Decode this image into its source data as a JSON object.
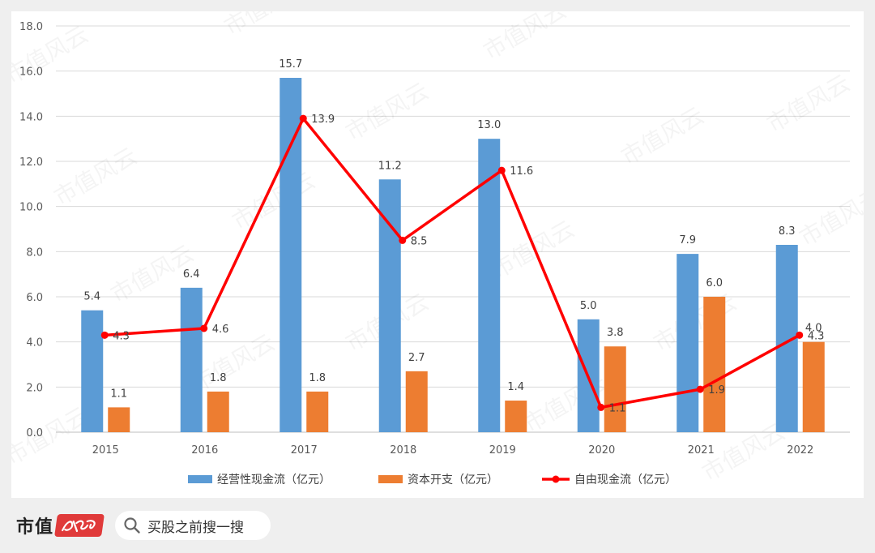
{
  "chart_data": {
    "type": "bar",
    "categories": [
      "2015",
      "2016",
      "2017",
      "2018",
      "2019",
      "2020",
      "2021",
      "2022"
    ],
    "ylim": [
      0,
      18
    ],
    "yticks": [
      "0.0",
      "2.0",
      "4.0",
      "6.0",
      "8.0",
      "10.0",
      "12.0",
      "14.0",
      "16.0",
      "18.0"
    ],
    "grid": true,
    "legend_position": "bottom",
    "series": [
      {
        "name": "经营性现金流（亿元）",
        "kind": "bar",
        "color": "#5b9bd5",
        "values": [
          5.4,
          6.4,
          15.7,
          11.2,
          13.0,
          5.0,
          7.9,
          8.3
        ],
        "labels": [
          "5.4",
          "6.4",
          "15.7",
          "11.2",
          "13.0",
          "5.0",
          "7.9",
          "8.3"
        ]
      },
      {
        "name": "资本开支（亿元）",
        "kind": "bar",
        "color": "#ed7d31",
        "values": [
          1.1,
          1.8,
          1.8,
          2.7,
          1.4,
          3.8,
          6.0,
          4.0
        ],
        "labels": [
          "1.1",
          "1.8",
          "1.8",
          "2.7",
          "1.4",
          "3.8",
          "6.0",
          "4.0"
        ]
      },
      {
        "name": "自由现金流（亿元）",
        "kind": "line",
        "color": "#ff0000",
        "values": [
          4.3,
          4.6,
          13.9,
          8.5,
          11.6,
          1.1,
          1.9,
          4.3
        ],
        "labels": [
          "4.3",
          "4.6",
          "13.9",
          "8.5",
          "11.6",
          "1.1",
          "1.9",
          "4.3"
        ]
      }
    ]
  },
  "watermark": "市值风云",
  "footer": {
    "brand": "市值",
    "brand_logo": "风云",
    "search_icon": "search-icon",
    "search_text": "买股之前搜一搜"
  }
}
